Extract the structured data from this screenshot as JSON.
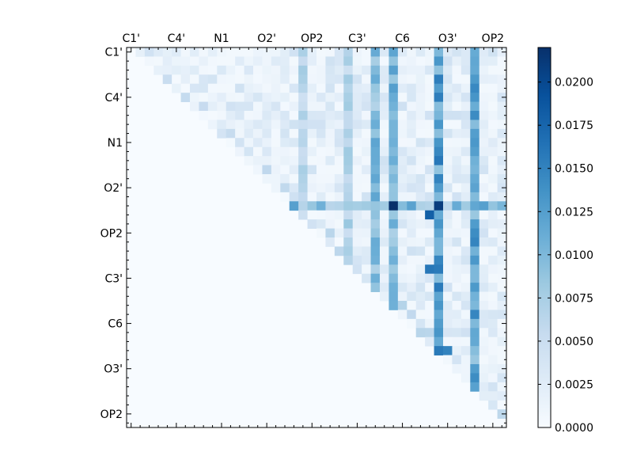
{
  "chart_data": {
    "type": "heatmap",
    "title": "",
    "xlabel": "",
    "ylabel": "",
    "n": 42,
    "tick_labels": [
      "C1'",
      "C4'",
      "N1",
      "O2'",
      "OP2",
      "C3'",
      "C6",
      "O3'",
      "OP2"
    ],
    "label_indices": [
      0,
      5,
      10,
      15,
      20,
      25,
      30,
      35,
      40
    ],
    "triangle": "upper",
    "colormap": "Blues",
    "colorbar": {
      "min": 0.0,
      "max": 0.022,
      "ticks": [
        "0.0000",
        "0.0025",
        "0.0050",
        "0.0075",
        "0.0100",
        "0.0125",
        "0.0150",
        "0.0175",
        "0.0200"
      ],
      "tick_values": [
        0,
        0.0025,
        0.005,
        0.0075,
        0.01,
        0.0125,
        0.015,
        0.0175,
        0.02
      ]
    },
    "highlight_columns": [
      {
        "index": 34,
        "value": 0.016
      },
      {
        "index": 38,
        "value": 0.015
      },
      {
        "index": 29,
        "value": 0.0125
      },
      {
        "index": 27,
        "value": 0.012
      },
      {
        "index": 24,
        "value": 0.0085
      },
      {
        "index": 19,
        "value": 0.008
      }
    ],
    "highlight_rows": [
      {
        "index": 17,
        "value": 0.013
      }
    ],
    "peak_cells": [
      {
        "row": 17,
        "col": 29,
        "value": 0.022
      },
      {
        "row": 17,
        "col": 34,
        "value": 0.021
      },
      {
        "row": 18,
        "col": 33,
        "value": 0.018
      },
      {
        "row": 24,
        "col": 33,
        "value": 0.016
      },
      {
        "row": 33,
        "col": 35,
        "value": 0.015
      }
    ],
    "background_range": [
      0.0005,
      0.0045
    ]
  }
}
